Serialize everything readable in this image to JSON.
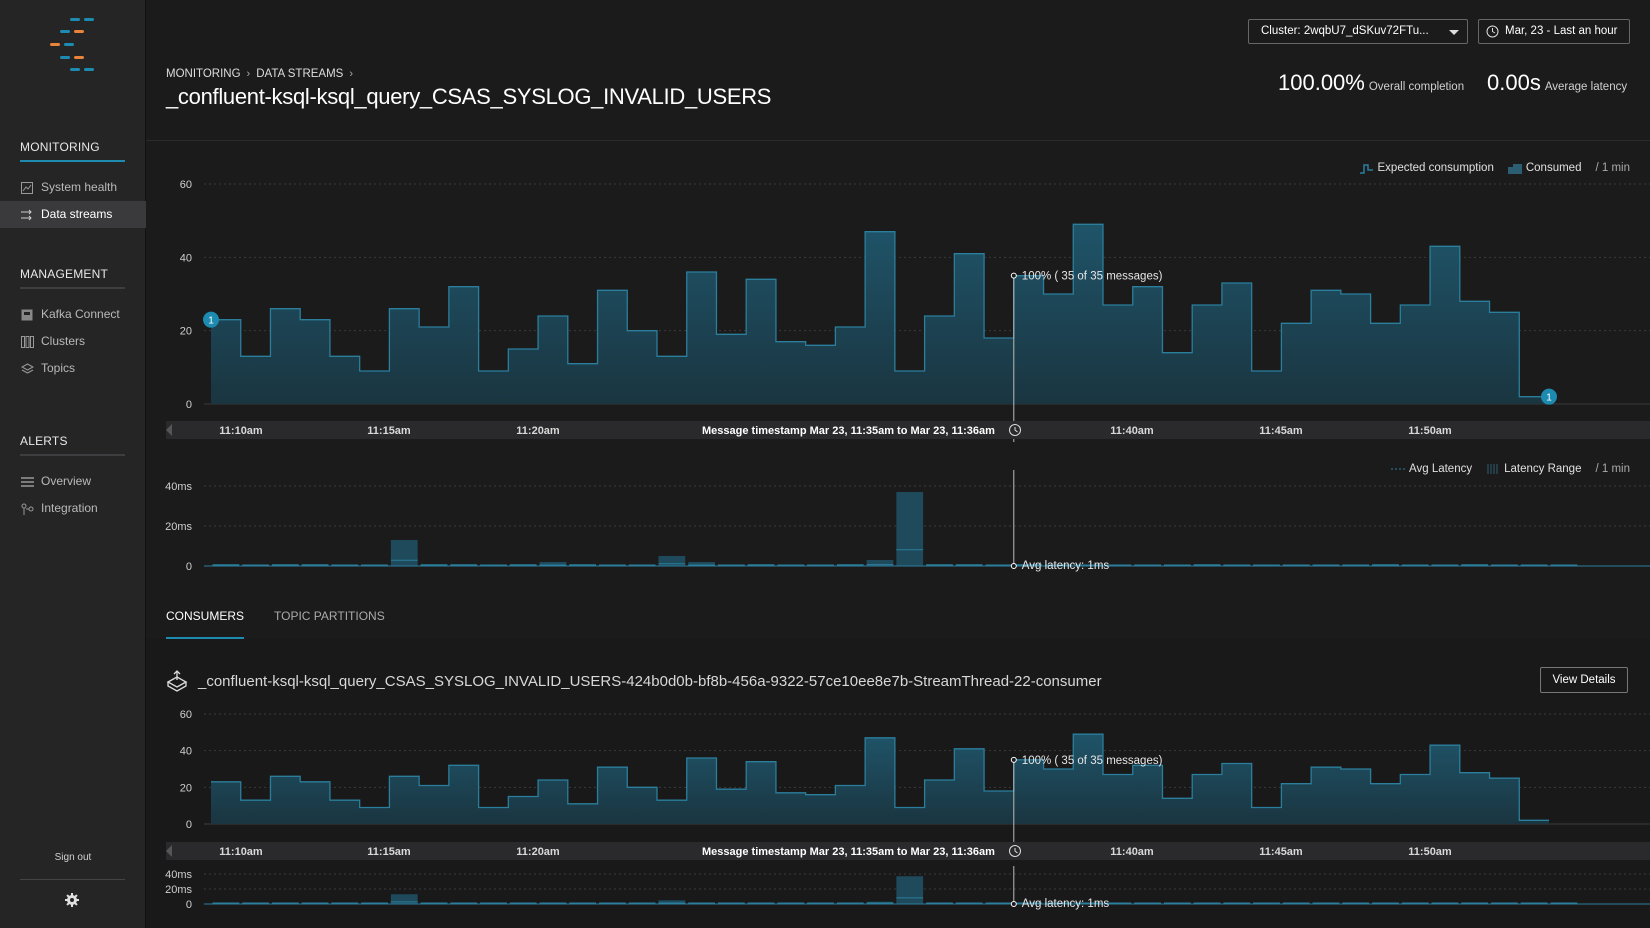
{
  "sidebar": {
    "sections": [
      {
        "title": "MONITORING",
        "items": [
          {
            "label": "System health",
            "icon": "chart-line-icon"
          },
          {
            "label": "Data streams",
            "icon": "streams-icon",
            "active": true
          }
        ]
      },
      {
        "title": "MANAGEMENT",
        "items": [
          {
            "label": "Kafka Connect",
            "icon": "connect-icon"
          },
          {
            "label": "Clusters",
            "icon": "clusters-icon"
          },
          {
            "label": "Topics",
            "icon": "layers-icon"
          }
        ]
      },
      {
        "title": "ALERTS",
        "items": [
          {
            "label": "Overview",
            "icon": "list-icon"
          },
          {
            "label": "Integration",
            "icon": "integration-icon"
          }
        ]
      }
    ],
    "sign_out": "Sign out"
  },
  "header": {
    "breadcrumbs": [
      "MONITORING",
      "DATA STREAMS"
    ],
    "title": "_confluent-ksql-ksql_query_CSAS_SYSLOG_INVALID_USERS",
    "cluster_select": "Cluster: 2wqbU7_dSKuv72FTu...",
    "time_range": "Mar, 23 - Last an hour",
    "completion": {
      "value": "100.00%",
      "label": "Overall completion"
    },
    "latency": {
      "value": "0.00s",
      "label": "Average latency"
    }
  },
  "colors": {
    "accent": "#1d8ab0",
    "bar_fill": "#1e4a5c",
    "bar_line": "#2b7e9c"
  },
  "main_chart": {
    "legend": {
      "expected": "Expected consumption",
      "consumed": "Consumed",
      "per": "/ 1 min"
    },
    "ticks_y": [
      "60",
      "40",
      "20",
      "0"
    ],
    "time_labels": [
      "11:10am",
      "11:15am",
      "11:20am",
      "11:40am",
      "11:45am",
      "11:50am"
    ],
    "window_label": "Message timestamp Mar 23, 11:35am to Mar 23, 11:36am",
    "tooltip": "100% ( 35 of 35 messages)",
    "badge": "1"
  },
  "latency_chart": {
    "legend": {
      "avg": "Avg Latency",
      "range": "Latency Range",
      "per": "/ 1 min"
    },
    "ticks_y": [
      "40ms",
      "20ms",
      "0"
    ],
    "tooltip": "Avg latency: 1ms"
  },
  "tabs": [
    "CONSUMERS",
    "TOPIC PARTITIONS"
  ],
  "consumer": {
    "name": "_confluent-ksql-ksql_query_CSAS_SYSLOG_INVALID_USERS-424b0d0b-bf8b-456a-9322-57ce10ee8e7b-StreamThread-22-consumer",
    "view_details": "View Details"
  },
  "chart_data": {
    "type": "area",
    "title": "",
    "xlabel": "",
    "ylabel": "",
    "ylim": [
      0,
      60
    ],
    "x": [
      "11:09am",
      "11:10am",
      "11:11am",
      "11:12am",
      "11:13am",
      "11:14am",
      "11:15am",
      "11:16am",
      "11:17am",
      "11:18am",
      "11:19am",
      "11:20am",
      "11:21am",
      "11:22am",
      "11:23am",
      "11:24am",
      "11:25am",
      "11:26am",
      "11:27am",
      "11:28am",
      "11:29am",
      "11:30am",
      "11:31am",
      "11:32am",
      "11:33am",
      "11:34am",
      "11:35am",
      "11:36am",
      "11:37am",
      "11:38am",
      "11:39am",
      "11:40am",
      "11:41am",
      "11:42am",
      "11:43am",
      "11:44am",
      "11:45am",
      "11:46am",
      "11:47am",
      "11:48am",
      "11:49am",
      "11:50am",
      "11:51am",
      "11:52am",
      "11:53am",
      "11:54am"
    ],
    "series": [
      {
        "name": "Consumed",
        "values": [
          23,
          13,
          26,
          23,
          13,
          9,
          26,
          21,
          32,
          9,
          15,
          24,
          11,
          31,
          20,
          13,
          36,
          19,
          34,
          17,
          16,
          21,
          47,
          9,
          24,
          41,
          18,
          35,
          30,
          49,
          27,
          32,
          14,
          27,
          33,
          9,
          22,
          31,
          30,
          22,
          27,
          43,
          28,
          25,
          2,
          2
        ]
      }
    ],
    "latency": {
      "ylim": [
        0,
        40
      ],
      "unit": "ms",
      "values": [
        1,
        0.5,
        1,
        1,
        0.5,
        0.5,
        13,
        1,
        1,
        0.5,
        1,
        2,
        1,
        0.5,
        0.5,
        5,
        2,
        0.5,
        1,
        0.5,
        0.5,
        1,
        3,
        37,
        1,
        1,
        0.5,
        1,
        0.5,
        0.5,
        0.5,
        0.5,
        0.5,
        1,
        0.5,
        0.5,
        0.5,
        0.5,
        0.5,
        1,
        0.5,
        0.5,
        1,
        0.5,
        0.5,
        0.5
      ]
    }
  }
}
